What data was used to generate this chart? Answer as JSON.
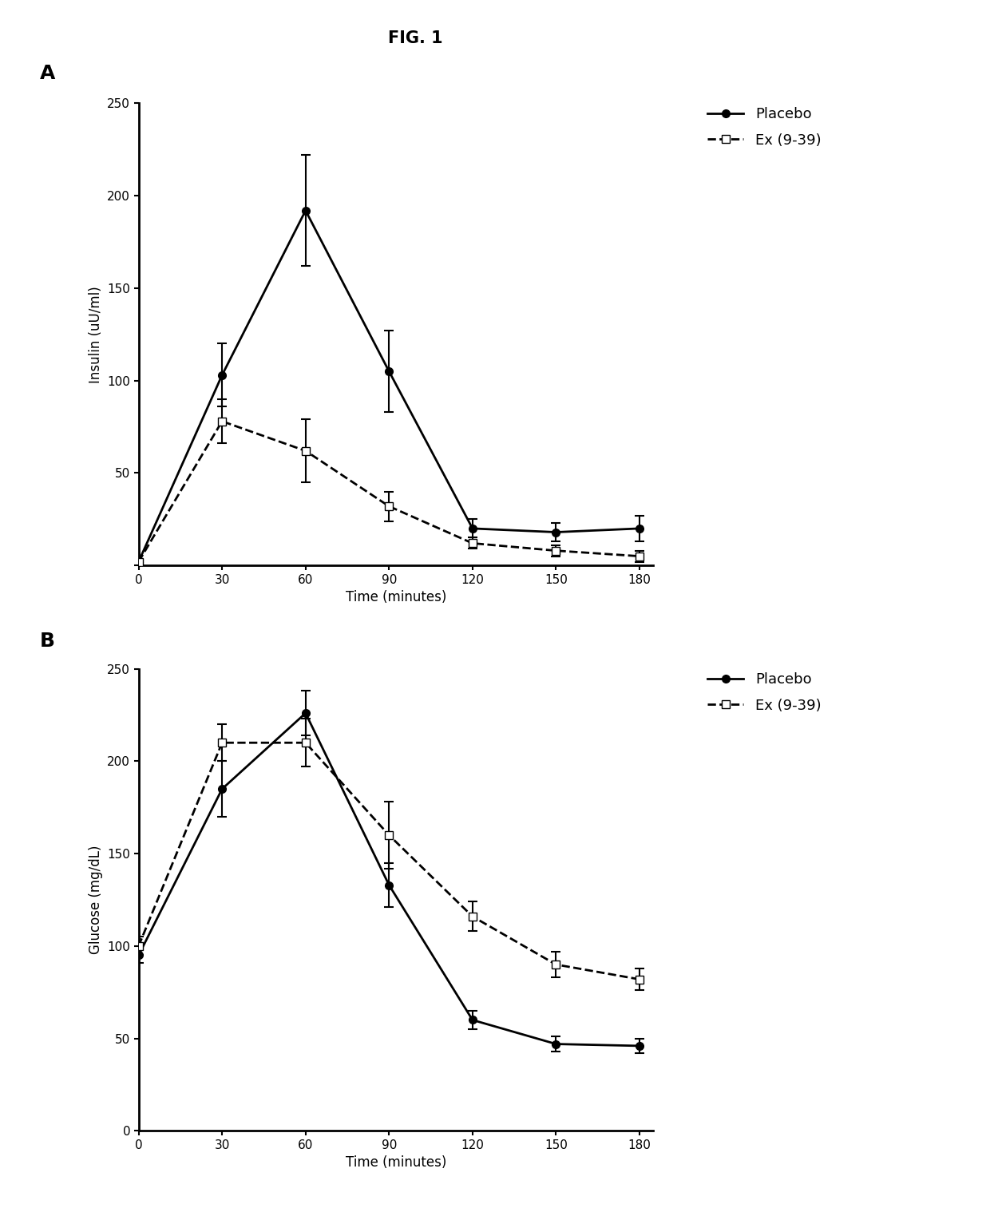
{
  "title": "FIG. 1",
  "panel_A": {
    "label": "A",
    "xlabel": "Time (minutes)",
    "ylabel": "Insulin (uU/ml)",
    "ylim": [
      0,
      250
    ],
    "yticks": [
      0,
      50,
      100,
      150,
      200,
      250
    ],
    "yticklabels": [
      "",
      "50",
      "100",
      "150",
      "200",
      "250"
    ],
    "xlim": [
      0,
      185
    ],
    "xticks": [
      0,
      30,
      60,
      90,
      120,
      150,
      180
    ],
    "placebo": {
      "x": [
        0,
        30,
        60,
        90,
        120,
        150,
        180
      ],
      "y": [
        2,
        103,
        192,
        105,
        20,
        18,
        20
      ],
      "yerr": [
        1,
        17,
        30,
        22,
        5,
        5,
        7
      ]
    },
    "ex939": {
      "x": [
        0,
        30,
        60,
        90,
        120,
        150,
        180
      ],
      "y": [
        2,
        78,
        62,
        32,
        12,
        8,
        5
      ],
      "yerr": [
        1,
        12,
        17,
        8,
        3,
        3,
        3
      ]
    }
  },
  "panel_B": {
    "label": "B",
    "xlabel": "Time (minutes)",
    "ylabel": "Glucose (mg/dL)",
    "ylim": [
      0,
      250
    ],
    "yticks": [
      0,
      50,
      100,
      150,
      200,
      250
    ],
    "yticklabels": [
      "0",
      "50",
      "100",
      "150",
      "200",
      "250"
    ],
    "xlim": [
      0,
      185
    ],
    "xticks": [
      0,
      30,
      60,
      90,
      120,
      150,
      180
    ],
    "placebo": {
      "x": [
        0,
        30,
        60,
        90,
        120,
        150,
        180
      ],
      "y": [
        95,
        185,
        226,
        133,
        60,
        47,
        46
      ],
      "yerr": [
        4,
        15,
        12,
        12,
        5,
        4,
        4
      ]
    },
    "ex939": {
      "x": [
        0,
        30,
        60,
        90,
        120,
        150,
        180
      ],
      "y": [
        100,
        210,
        210,
        160,
        116,
        90,
        82
      ],
      "yerr": [
        5,
        10,
        13,
        18,
        8,
        7,
        6
      ]
    }
  },
  "legend": {
    "placebo_label": "Placebo",
    "ex939_label": "Ex (9-39)"
  },
  "line_color": "#000000",
  "background_color": "#ffffff",
  "title_fontsize": 15,
  "label_fontsize": 12,
  "tick_fontsize": 11,
  "legend_fontsize": 13
}
